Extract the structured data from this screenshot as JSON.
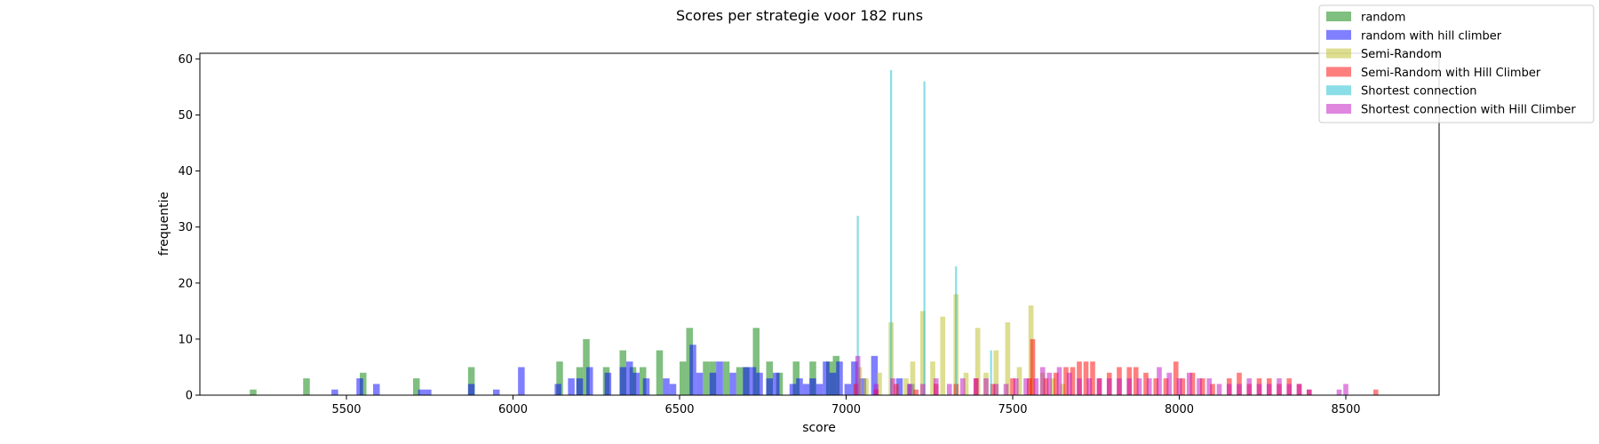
{
  "chart_data": {
    "type": "bar",
    "title": "Scores per strategie voor 182 runs",
    "xlabel": "score",
    "ylabel": "frequentie",
    "xlim": [
      5060,
      8780
    ],
    "ylim": [
      0,
      61
    ],
    "xticks": [
      5500,
      6000,
      6500,
      7000,
      7500,
      8000,
      8500
    ],
    "yticks": [
      0,
      10,
      20,
      30,
      40,
      50,
      60
    ],
    "grid": false,
    "legend_position": "top-right",
    "series": [
      {
        "name": "random",
        "color": "#008000",
        "bin_width": 20,
        "x": [
          5220,
          5380,
          5550,
          5710,
          5875,
          6140,
          6200,
          6220,
          6280,
          6330,
          6360,
          6390,
          6440,
          6510,
          6530,
          6580,
          6600,
          6640,
          6680,
          6700,
          6730,
          6770,
          6800,
          6850,
          6900,
          6950,
          6970
        ],
        "values": [
          1,
          3,
          4,
          3,
          5,
          6,
          5,
          10,
          5,
          8,
          5,
          5,
          8,
          6,
          12,
          6,
          6,
          6,
          5,
          5,
          12,
          6,
          4,
          6,
          6,
          6,
          7
        ]
      },
      {
        "name": "random with hill climber",
        "color": "#0000ff",
        "bin_width": 20,
        "x": [
          5465,
          5540,
          5590,
          5725,
          5745,
          5875,
          5950,
          6025,
          6135,
          6175,
          6200,
          6230,
          6285,
          6330,
          6350,
          6370,
          6400,
          6460,
          6480,
          6540,
          6560,
          6600,
          6620,
          6660,
          6700,
          6720,
          6740,
          6770,
          6790,
          6840,
          6860,
          6880,
          6900,
          6920,
          6940,
          6960,
          6980,
          7005,
          7025,
          7050,
          7085,
          7160,
          7195
        ],
        "values": [
          1,
          3,
          2,
          1,
          1,
          2,
          1,
          5,
          2,
          3,
          3,
          5,
          4,
          5,
          6,
          4,
          3,
          3,
          2,
          9,
          4,
          4,
          6,
          4,
          5,
          5,
          4,
          3,
          4,
          2,
          3,
          2,
          3,
          2,
          6,
          4,
          6,
          2,
          6,
          3,
          7,
          3,
          2
        ]
      },
      {
        "name": "Semi-Random",
        "color": "#bcbd22",
        "bin_width": 15,
        "x": [
          7040,
          7060,
          7100,
          7135,
          7180,
          7200,
          7230,
          7260,
          7290,
          7330,
          7360,
          7395,
          7420,
          7450,
          7485,
          7520,
          7555,
          7590,
          7620,
          7650
        ],
        "values": [
          5,
          3,
          4,
          13,
          3,
          6,
          15,
          6,
          14,
          18,
          4,
          12,
          4,
          8,
          13,
          5,
          16,
          4,
          3,
          2
        ]
      },
      {
        "name": "Semi-Random with Hill Climber",
        "color": "#ff0000",
        "bin_width": 15,
        "x": [
          7030,
          7090,
          7150,
          7210,
          7270,
          7330,
          7390,
          7440,
          7500,
          7550,
          7560,
          7600,
          7630,
          7660,
          7680,
          7700,
          7720,
          7740,
          7760,
          7790,
          7820,
          7850,
          7870,
          7900,
          7930,
          7960,
          7990,
          8010,
          8040,
          8070,
          8100,
          8150,
          8180,
          8210,
          8240,
          8270,
          8300,
          8330,
          8360,
          8390,
          8590
        ],
        "values": [
          2,
          1,
          2,
          1,
          2,
          2,
          3,
          2,
          3,
          3,
          10,
          3,
          4,
          5,
          5,
          6,
          6,
          6,
          3,
          4,
          5,
          5,
          5,
          4,
          3,
          3,
          6,
          3,
          4,
          3,
          2,
          3,
          4,
          2,
          3,
          3,
          2,
          3,
          2,
          1,
          1
        ]
      },
      {
        "name": "Shortest connection",
        "color": "#17becf",
        "bin_width": 6,
        "x": [
          7035,
          7135,
          7235,
          7330,
          7435
        ],
        "values": [
          32,
          58,
          56,
          23,
          8
        ]
      },
      {
        "name": "Shortest connection with Hill Climber",
        "color": "#c00ec0",
        "bin_width": 15,
        "x": [
          7035,
          7090,
          7140,
          7190,
          7230,
          7270,
          7310,
          7350,
          7390,
          7420,
          7450,
          7480,
          7510,
          7540,
          7570,
          7590,
          7610,
          7640,
          7670,
          7700,
          7730,
          7760,
          7790,
          7820,
          7850,
          7880,
          7910,
          7940,
          7970,
          8000,
          8030,
          8060,
          8090,
          8120,
          8150,
          8180,
          8210,
          8240,
          8270,
          8300,
          8330,
          8360,
          8390,
          8480,
          8500
        ],
        "values": [
          7,
          2,
          3,
          2,
          2,
          3,
          2,
          3,
          3,
          3,
          2,
          2,
          3,
          3,
          3,
          5,
          4,
          5,
          4,
          3,
          3,
          3,
          3,
          3,
          3,
          3,
          3,
          5,
          4,
          3,
          4,
          3,
          3,
          2,
          2,
          2,
          3,
          2,
          2,
          3,
          2,
          2,
          1,
          1,
          2
        ]
      }
    ]
  }
}
